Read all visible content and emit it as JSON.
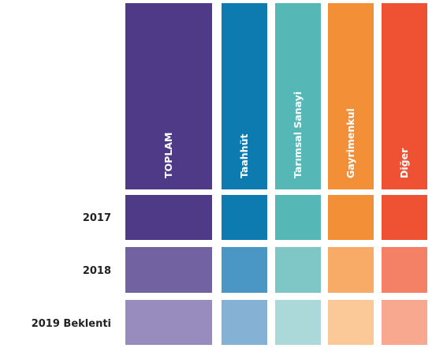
{
  "table": {
    "columns": [
      "TOPLAM",
      "Taahhüt",
      "Tarımsal Sanayi",
      "Gayrimenkul",
      "Diğer"
    ],
    "rows": [
      "2017",
      "2018",
      "2019 Beklenti"
    ]
  }
}
